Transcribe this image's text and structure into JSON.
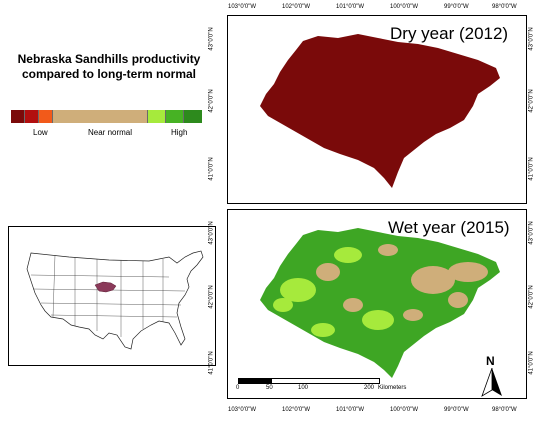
{
  "title": {
    "line1": "Nebraska Sandhills productivity",
    "line2": "compared to long-term normal"
  },
  "legend": {
    "colors": [
      "#7b0a0a",
      "#b20f0f",
      "#f25a1a",
      "#cfae7a",
      "#a6ea3c",
      "#47b224",
      "#2d8a1d"
    ],
    "low": "Low",
    "near_normal": "Near  normal",
    "high": "High"
  },
  "panels": [
    {
      "label": "Dry year (2012)",
      "fill": "#7a0a0a",
      "top_ticks": [
        "103°0'0\"W",
        "102°0'0\"W",
        "101°0'0\"W",
        "100°0'0\"W",
        "99°0'0\"W",
        "98°0'0\"W"
      ],
      "lat_ticks": [
        "43°0'0\"N",
        "42°0'0\"N",
        "41°0'0\"N"
      ]
    },
    {
      "label": "Wet year (2015)",
      "fill": "#3ea624",
      "bottom_ticks": [
        "103°0'0\"W",
        "102°0'0\"W",
        "101°0'0\"W",
        "100°0'0\"W",
        "99°0'0\"W",
        "98°0'0\"W"
      ],
      "lat_ticks": [
        "43°0'0\"N",
        "42°0'0\"N",
        "41°0'0\"N"
      ]
    }
  ],
  "scale_bar": {
    "labels": [
      "0",
      "50",
      "100",
      "200"
    ],
    "unit": "Kilometers"
  },
  "north_arrow": "N",
  "colors": {
    "dry_fill": "#7a0a0a",
    "wet_green": "#3ea624",
    "wet_light": "#a6ea3c",
    "wet_tan": "#cfae7a",
    "inset_highlight": "#8b3a5a"
  }
}
